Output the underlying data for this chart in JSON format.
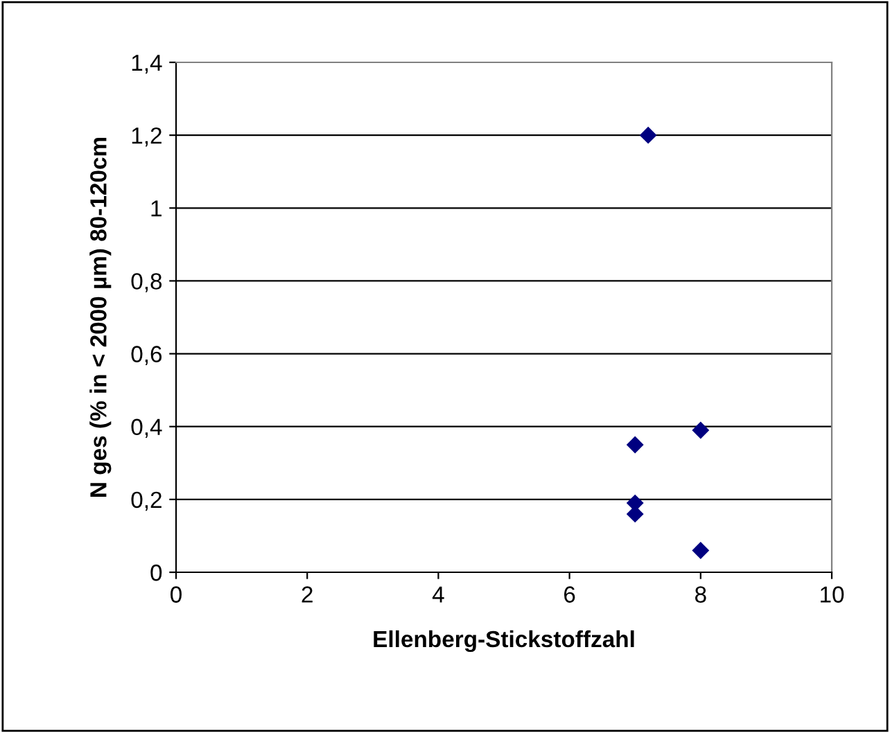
{
  "chart_data": {
    "type": "scatter",
    "xlabel": "Ellenberg-Stickstoffzahl",
    "ylabel": "N ges (% in < 2000 µm) 80-120cm",
    "x": [
      7.2,
      7,
      8,
      7,
      7,
      8
    ],
    "values": [
      1.2,
      0.35,
      0.39,
      0.19,
      0.16,
      0.06
    ],
    "color": "#000080",
    "marker": "diamond",
    "grid": "y",
    "legend": false,
    "xlim": [
      0,
      10
    ],
    "xticks": [
      0,
      2,
      4,
      6,
      8,
      10
    ],
    "ylim": [
      0,
      1.4
    ],
    "yticks": [
      0,
      {
        "value": 0.2,
        "label": "0,2"
      },
      {
        "value": 0.4,
        "label": "0,4"
      },
      {
        "value": 0.6,
        "label": "0,6"
      },
      {
        "value": 0.8,
        "label": "0,8"
      },
      1,
      {
        "value": 1.2,
        "label": "1,2"
      },
      {
        "value": 1.4,
        "label": "1,4"
      }
    ]
  }
}
